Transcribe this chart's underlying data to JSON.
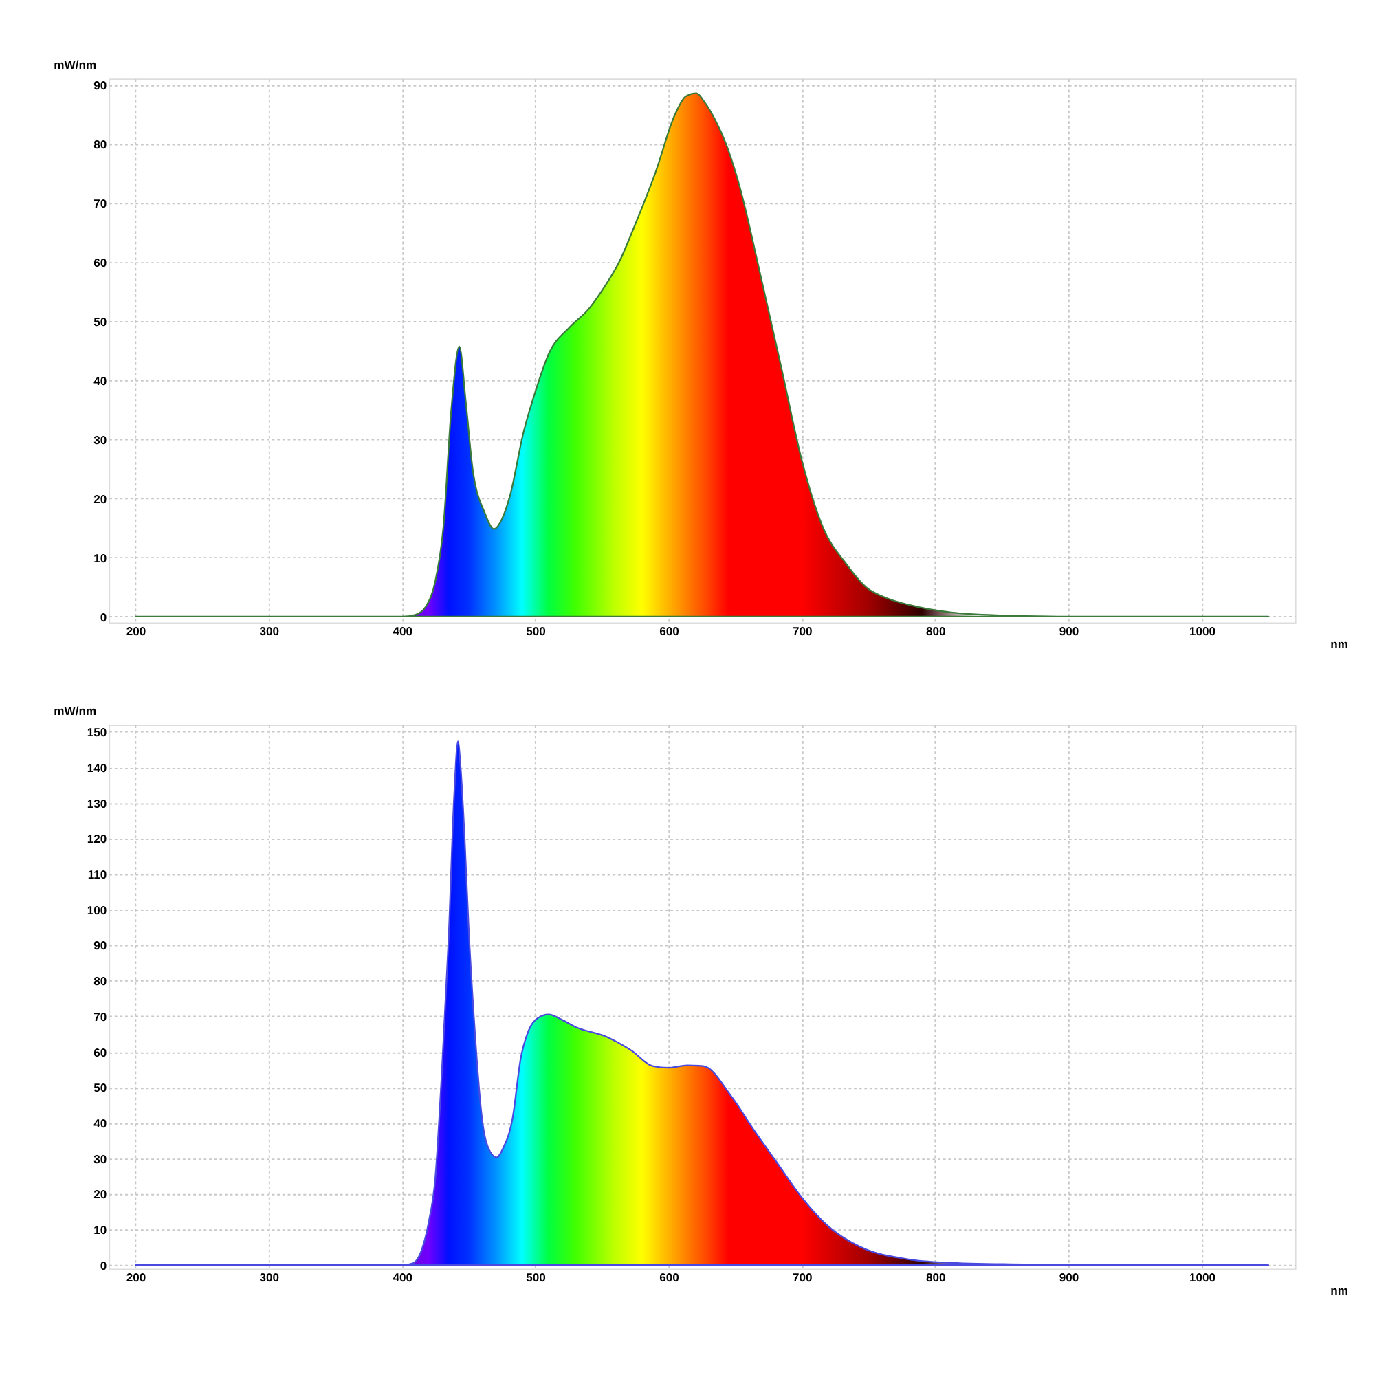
{
  "chart_data": [
    {
      "type": "area",
      "xlabel": "nm",
      "ylabel": "mW/nm",
      "xlim": [
        180,
        1070
      ],
      "ylim": [
        -1,
        91
      ],
      "xticks": [
        200,
        300,
        400,
        500,
        600,
        700,
        800,
        900,
        1000
      ],
      "yticks": [
        0,
        10,
        20,
        30,
        40,
        50,
        60,
        70,
        80,
        90
      ],
      "grid": true,
      "series": [
        {
          "color": "#3a7a3a",
          "x": [
            200,
            300,
            400,
            410,
            418,
            425,
            431,
            437,
            443,
            448,
            453,
            462,
            469,
            475,
            481,
            491,
            500,
            510,
            526,
            540,
            552,
            563,
            574,
            590,
            605,
            613,
            621,
            627,
            635,
            643,
            653,
            669,
            685,
            700,
            716,
            733,
            748,
            765,
            780,
            812,
            850,
            900,
            1000,
            1050
          ],
          "values": [
            0,
            0,
            0,
            0.3,
            1.7,
            6,
            15,
            35,
            45.7,
            36,
            25,
            17.6,
            14.8,
            16.5,
            20.4,
            31,
            38,
            44.4,
            49,
            52,
            55.8,
            60,
            65.8,
            75,
            85,
            88,
            88.5,
            87,
            84,
            80,
            73,
            57.7,
            41.7,
            26.4,
            15,
            9,
            5,
            3,
            2,
            0.7,
            0.2,
            0,
            0,
            0
          ]
        }
      ]
    },
    {
      "type": "area",
      "xlabel": "nm",
      "ylabel": "mW/nm",
      "xlim": [
        180,
        1070
      ],
      "ylim": [
        -1,
        152
      ],
      "xticks": [
        200,
        300,
        400,
        500,
        600,
        700,
        800,
        900,
        1000
      ],
      "yticks": [
        0,
        10,
        20,
        30,
        40,
        50,
        60,
        70,
        80,
        90,
        100,
        110,
        120,
        130,
        140,
        150
      ],
      "grid": true,
      "series": [
        {
          "color": "#4a4ae0",
          "x": [
            200,
            300,
            400,
            408,
            415,
            420,
            425,
            430,
            435,
            439,
            442,
            444,
            447,
            450,
            454,
            460,
            466,
            471,
            476,
            483,
            489,
            495,
            502,
            510,
            520,
            530,
            553,
            572,
            588,
            600,
            614,
            626,
            648,
            664,
            681,
            700,
            719,
            744,
            777,
            808,
            866,
            900,
            1000,
            1050
          ],
          "values": [
            0,
            0,
            0,
            0.5,
            4.5,
            12,
            24.6,
            55,
            92,
            131,
            147.3,
            140,
            120,
            95,
            69.4,
            41.4,
            32,
            30.3,
            33,
            41.4,
            58,
            66,
            69.5,
            70.5,
            69,
            67,
            64.3,
            60.4,
            56,
            55.5,
            56.2,
            56,
            47,
            38,
            29,
            19,
            11.2,
            5.1,
            1.8,
            0.7,
            0.2,
            0,
            0,
            0
          ]
        }
      ]
    }
  ]
}
